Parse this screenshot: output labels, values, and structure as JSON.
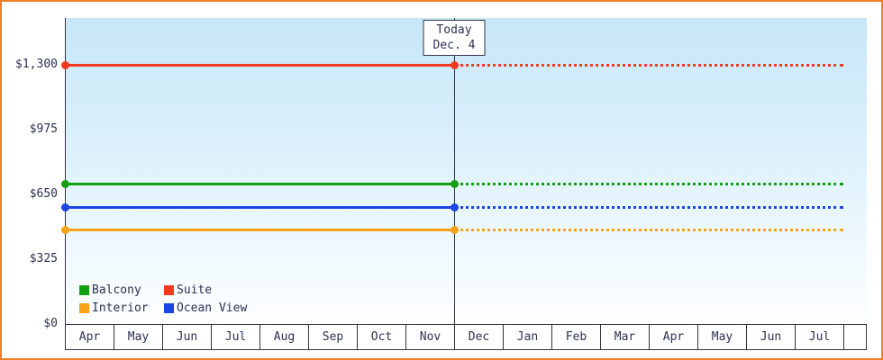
{
  "canvas": {
    "border_color": "#f08021",
    "background": "#ffffff"
  },
  "chart_data": {
    "type": "line",
    "title": "",
    "xlabel": "",
    "ylabel": "",
    "x_categories": [
      "Apr",
      "May",
      "Jun",
      "Jul",
      "Aug",
      "Sep",
      "Oct",
      "Nov",
      "Dec",
      "Jan",
      "Feb",
      "Mar",
      "Apr",
      "May",
      "Jun",
      "Jul"
    ],
    "y_ticks": [
      {
        "label": "$0",
        "value": 0
      },
      {
        "label": "$325",
        "value": 325
      },
      {
        "label": "$650",
        "value": 650
      },
      {
        "label": "$975",
        "value": 975
      },
      {
        "label": "$1,300",
        "value": 1300
      }
    ],
    "ylim": [
      0,
      1535
    ],
    "grid": false,
    "today_marker": {
      "line1": "Today",
      "line2": "Dec. 4",
      "x_category_index": 8
    },
    "series": [
      {
        "name": "Suite",
        "color": "#f03b20",
        "value": 1300,
        "style_before_today": "solid",
        "style_after_today": "dotted"
      },
      {
        "name": "Balcony",
        "color": "#12a012",
        "value": 700,
        "style_before_today": "solid",
        "style_after_today": "dotted"
      },
      {
        "name": "Ocean View",
        "color": "#1c45e0",
        "value": 585,
        "style_before_today": "solid",
        "style_after_today": "dotted"
      },
      {
        "name": "Interior",
        "color": "#f7a218",
        "value": 470,
        "style_before_today": "solid",
        "style_after_today": "dotted"
      }
    ],
    "legend": {
      "position": "bottom-left-inside",
      "rows": [
        [
          "Balcony",
          "Suite"
        ],
        [
          "Interior",
          "Ocean View"
        ]
      ]
    },
    "axis_color": "#333344",
    "text_color": "#2d3250",
    "plot_bg_top": "#c7e7f8",
    "plot_bg_bottom": "#fdfeff"
  }
}
